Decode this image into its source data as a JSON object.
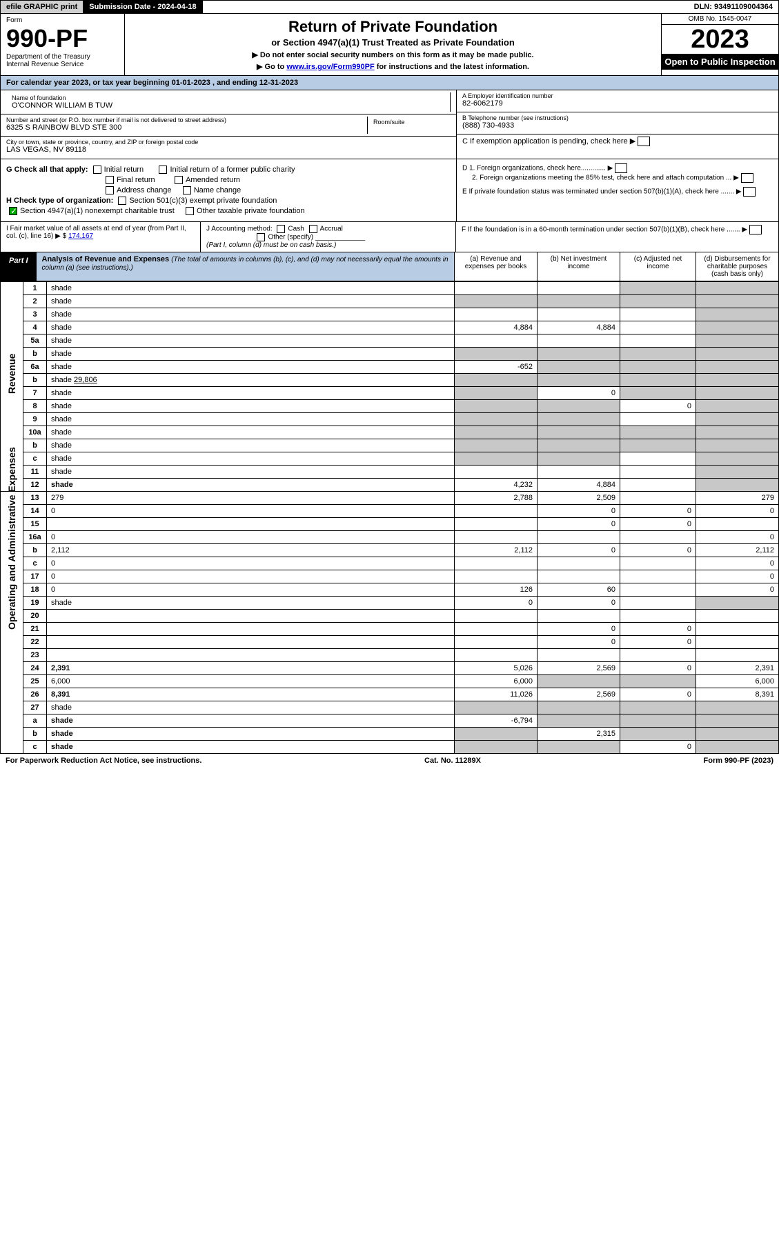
{
  "top": {
    "efile": "efile GRAPHIC print",
    "sub_date_lbl": "Submission Date - 2024-04-18",
    "dln": "DLN: 93491109004364"
  },
  "hdr": {
    "form_word": "Form",
    "form_num": "990-PF",
    "dept1": "Department of the Treasury",
    "dept2": "Internal Revenue Service",
    "title": "Return of Private Foundation",
    "subtitle": "or Section 4947(a)(1) Trust Treated as Private Foundation",
    "instr1": "▶ Do not enter social security numbers on this form as it may be made public.",
    "instr2_pre": "▶ Go to ",
    "instr2_link": "www.irs.gov/Form990PF",
    "instr2_post": " for instructions and the latest information.",
    "omb": "OMB No. 1545-0047",
    "year": "2023",
    "open": "Open to Public Inspection"
  },
  "cal": "For calendar year 2023, or tax year beginning 01-01-2023              , and ending 12-31-2023",
  "info": {
    "name_lbl": "Name of foundation",
    "name": "O'CONNOR WILLIAM B TUW",
    "addr_lbl": "Number and street (or P.O. box number if mail is not delivered to street address)",
    "addr": "6325 S RAINBOW BLVD STE 300",
    "room_lbl": "Room/suite",
    "city_lbl": "City or town, state or province, country, and ZIP or foreign postal code",
    "city": "LAS VEGAS, NV  89118",
    "ein_lbl": "A Employer identification number",
    "ein": "82-6062179",
    "tel_lbl": "B Telephone number (see instructions)",
    "tel": "(888) 730-4933",
    "c_lbl": "C If exemption application is pending, check here",
    "d1": "D 1. Foreign organizations, check here.............",
    "d2": "2. Foreign organizations meeting the 85% test, check here and attach computation ...",
    "e": "E If private foundation status was terminated under section 507(b)(1)(A), check here .......",
    "f": "F If the foundation is in a 60-month termination under section 507(b)(1)(B), check here ......."
  },
  "g": {
    "lbl": "G Check all that apply:",
    "initial": "Initial return",
    "initial_former": "Initial return of a former public charity",
    "final": "Final return",
    "amended": "Amended return",
    "addr_chg": "Address change",
    "name_chg": "Name change"
  },
  "h": {
    "lbl": "H Check type of organization:",
    "s501": "Section 501(c)(3) exempt private foundation",
    "s4947": "Section 4947(a)(1) nonexempt charitable trust",
    "other_tax": "Other taxable private foundation"
  },
  "i": {
    "lbl": "I Fair market value of all assets at end of year (from Part II, col. (c), line 16)",
    "amt_pre": "▶ $",
    "amt": "174,167"
  },
  "j": {
    "lbl": "J Accounting method:",
    "cash": "Cash",
    "accrual": "Accrual",
    "other": "Other (specify)",
    "note": "(Part I, column (d) must be on cash basis.)"
  },
  "part1": {
    "part": "Part I",
    "title": "Analysis of Revenue and Expenses",
    "note": " (The total of amounts in columns (b), (c), and (d) may not necessarily equal the amounts in column (a) (see instructions).)",
    "col_a": "(a) Revenue and expenses per books",
    "col_b": "(b) Net investment income",
    "col_c": "(c) Adjusted net income",
    "col_d": "(d) Disbursements for charitable purposes (cash basis only)",
    "rev_lbl": "Revenue",
    "exp_lbl": "Operating and Administrative Expenses"
  },
  "rows": [
    {
      "n": "1",
      "d": "shade",
      "a": "",
      "b": "",
      "c": "shade"
    },
    {
      "n": "2",
      "d": "shade",
      "a": "shade",
      "b": "shade",
      "c": "shade",
      "bold_not": true
    },
    {
      "n": "3",
      "d": "shade",
      "a": "",
      "b": "",
      "c": ""
    },
    {
      "n": "4",
      "d": "shade",
      "a": "4,884",
      "b": "4,884",
      "c": ""
    },
    {
      "n": "5a",
      "d": "shade",
      "a": "",
      "b": "",
      "c": ""
    },
    {
      "n": "b",
      "d": "shade",
      "a": "shade",
      "b": "shade",
      "c": "shade",
      "inline": true
    },
    {
      "n": "6a",
      "d": "shade",
      "a": "-652",
      "b": "shade",
      "c": "shade"
    },
    {
      "n": "b",
      "d": "shade",
      "a": "shade",
      "b": "shade",
      "c": "shade",
      "inline_val": "29,806"
    },
    {
      "n": "7",
      "d": "shade",
      "a": "shade",
      "b": "0",
      "c": "shade"
    },
    {
      "n": "8",
      "d": "shade",
      "a": "shade",
      "b": "shade",
      "c": "0"
    },
    {
      "n": "9",
      "d": "shade",
      "a": "shade",
      "b": "shade",
      "c": ""
    },
    {
      "n": "10a",
      "d": "shade",
      "a": "shade",
      "b": "shade",
      "c": "shade",
      "inline": true
    },
    {
      "n": "b",
      "d": "shade",
      "a": "shade",
      "b": "shade",
      "c": "shade",
      "inline": true
    },
    {
      "n": "c",
      "d": "shade",
      "a": "shade",
      "b": "shade",
      "c": ""
    },
    {
      "n": "11",
      "d": "shade",
      "a": "",
      "b": "",
      "c": ""
    },
    {
      "n": "12",
      "d": "shade",
      "a": "4,232",
      "b": "4,884",
      "c": "",
      "bold": true
    },
    {
      "n": "13",
      "d": "279",
      "a": "2,788",
      "b": "2,509",
      "c": ""
    },
    {
      "n": "14",
      "d": "0",
      "a": "",
      "b": "0",
      "c": "0"
    },
    {
      "n": "15",
      "d": "",
      "a": "",
      "b": "0",
      "c": "0"
    },
    {
      "n": "16a",
      "d": "0",
      "a": "",
      "b": "",
      "c": ""
    },
    {
      "n": "b",
      "d": "2,112",
      "a": "2,112",
      "b": "0",
      "c": "0"
    },
    {
      "n": "c",
      "d": "0",
      "a": "",
      "b": "",
      "c": ""
    },
    {
      "n": "17",
      "d": "0",
      "a": "",
      "b": "",
      "c": ""
    },
    {
      "n": "18",
      "d": "0",
      "a": "126",
      "b": "60",
      "c": ""
    },
    {
      "n": "19",
      "d": "shade",
      "a": "0",
      "b": "0",
      "c": ""
    },
    {
      "n": "20",
      "d": "",
      "a": "",
      "b": "",
      "c": ""
    },
    {
      "n": "21",
      "d": "",
      "a": "",
      "b": "0",
      "c": "0"
    },
    {
      "n": "22",
      "d": "",
      "a": "",
      "b": "0",
      "c": "0"
    },
    {
      "n": "23",
      "d": "",
      "a": "",
      "b": "",
      "c": ""
    },
    {
      "n": "24",
      "d": "2,391",
      "a": "5,026",
      "b": "2,569",
      "c": "0",
      "bold": true
    },
    {
      "n": "25",
      "d": "6,000",
      "a": "6,000",
      "b": "shade",
      "c": "shade"
    },
    {
      "n": "26",
      "d": "8,391",
      "a": "11,026",
      "b": "2,569",
      "c": "0",
      "bold": true
    },
    {
      "n": "27",
      "d": "shade",
      "a": "shade",
      "b": "shade",
      "c": "shade"
    },
    {
      "n": "a",
      "d": "shade",
      "a": "-6,794",
      "b": "shade",
      "c": "shade",
      "bold": true
    },
    {
      "n": "b",
      "d": "shade",
      "a": "shade",
      "b": "2,315",
      "c": "shade",
      "bold": true
    },
    {
      "n": "c",
      "d": "shade",
      "a": "shade",
      "b": "shade",
      "c": "0",
      "bold": true
    }
  ],
  "footer": {
    "left": "For Paperwork Reduction Act Notice, see instructions.",
    "mid": "Cat. No. 11289X",
    "right": "Form 990-PF (2023)"
  }
}
